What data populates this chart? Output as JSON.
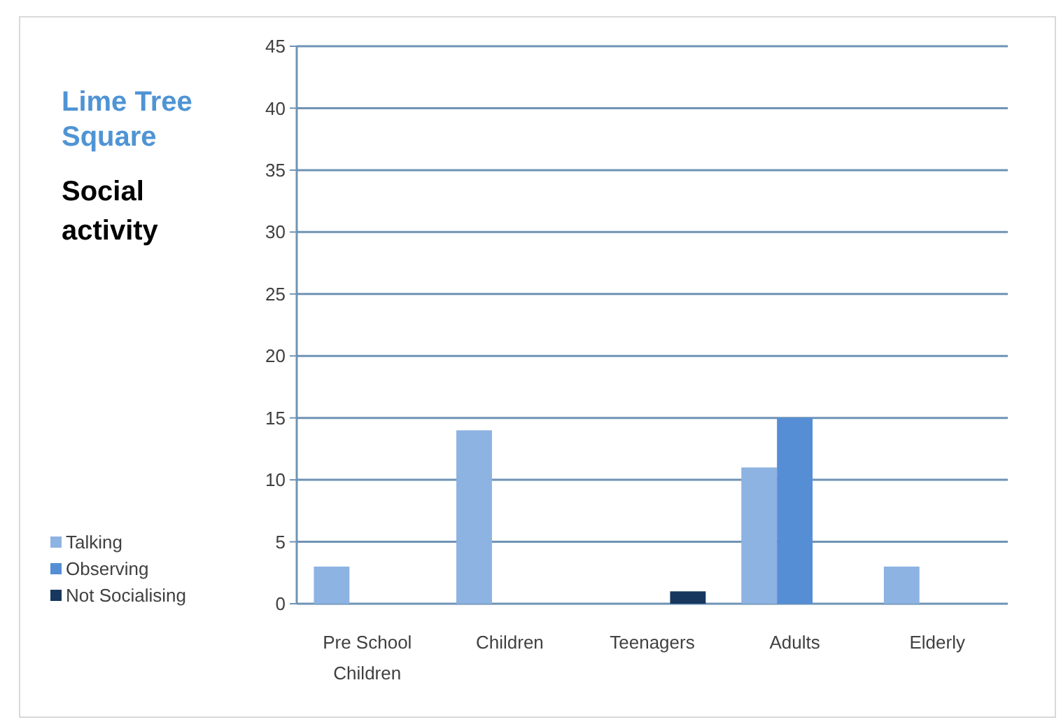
{
  "chart_data": {
    "type": "bar",
    "title": "Lime Tree Square",
    "subtitle": "Social activity",
    "categories": [
      "Pre School Children",
      "Children",
      "Teenagers",
      "Adults",
      "Elderly"
    ],
    "series": [
      {
        "name": "Talking",
        "color": "#8db3e2",
        "values": [
          3,
          14,
          0,
          11,
          3
        ]
      },
      {
        "name": "Observing",
        "color": "#558ed5",
        "values": [
          0,
          0,
          0,
          15,
          0
        ]
      },
      {
        "name": "Not Socialising",
        "color": "#17375e",
        "values": [
          0,
          0,
          1,
          0,
          0
        ]
      }
    ],
    "ylim": [
      0,
      45
    ],
    "yticks": [
      0,
      5,
      10,
      15,
      20,
      25,
      30,
      35,
      40,
      45
    ],
    "grid": "y",
    "legend": "bottom left"
  }
}
